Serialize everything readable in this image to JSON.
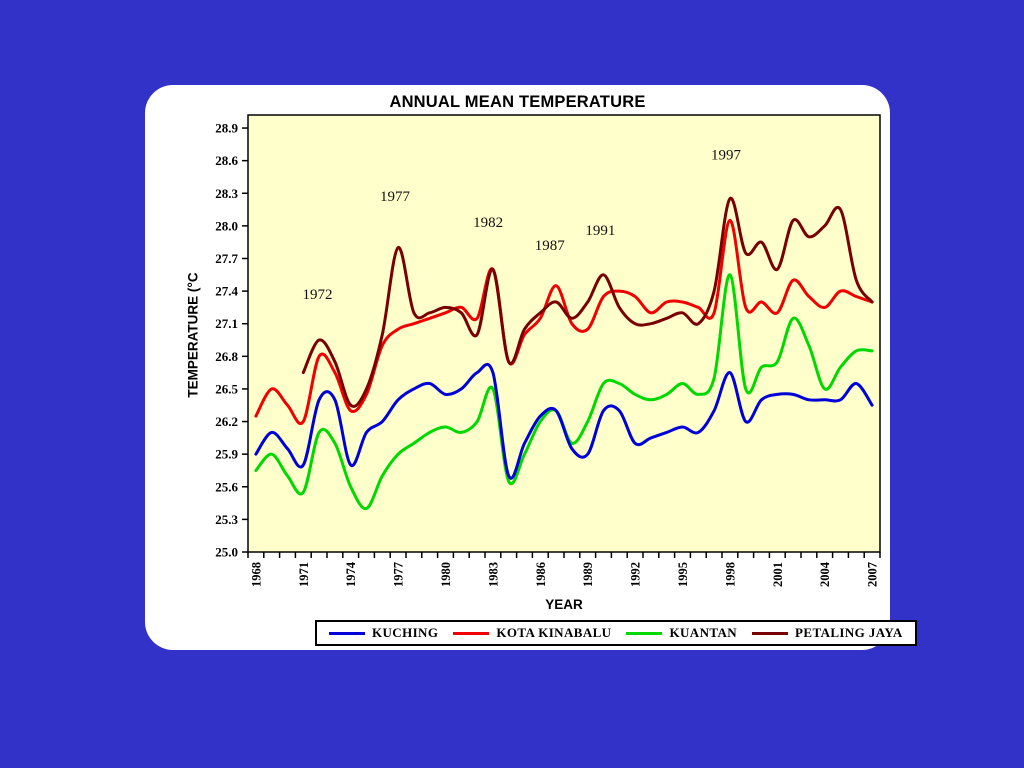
{
  "window": {
    "background_color": "#3232C8",
    "card_color": "#FFFFFF"
  },
  "chart_data": {
    "type": "line",
    "title": "ANNUAL MEAN TEMPERATURE",
    "xlabel": "YEAR",
    "ylabel": "TEMPERATURE (°C",
    "plot_background": "#FFFFCC",
    "axis_color": "#000000",
    "grid": false,
    "legend_position": "bottom",
    "x_start": 1968,
    "x_end": 2007,
    "xtick_labels": [
      1968,
      1971,
      1974,
      1977,
      1980,
      1983,
      1986,
      1989,
      1992,
      1995,
      1998,
      2001,
      2004,
      2007
    ],
    "ylim": [
      25.0,
      29.02
    ],
    "yticks": [
      25.0,
      25.3,
      25.6,
      25.9,
      26.2,
      26.5,
      26.8,
      27.1,
      27.4,
      27.7,
      28.0,
      28.3,
      28.6,
      28.9
    ],
    "series": [
      {
        "name": "KUCHING",
        "color": "#0000D8",
        "values": [
          25.9,
          26.1,
          25.95,
          25.8,
          26.4,
          26.4,
          25.8,
          26.1,
          26.2,
          26.4,
          26.5,
          26.55,
          26.45,
          26.5,
          26.65,
          26.65,
          25.7,
          26.0,
          26.25,
          26.3,
          25.95,
          25.9,
          26.3,
          26.3,
          26.0,
          26.05,
          26.1,
          26.15,
          26.1,
          26.3,
          26.65,
          26.2,
          26.4,
          26.45,
          26.45,
          26.4,
          26.4,
          26.4,
          26.55,
          26.35
        ]
      },
      {
        "name": "KOTA KINABALU",
        "color": "#F00000",
        "values": [
          26.25,
          26.5,
          26.35,
          26.2,
          26.8,
          26.65,
          26.3,
          26.45,
          26.9,
          27.05,
          27.1,
          27.15,
          27.2,
          27.25,
          27.15,
          27.6,
          26.75,
          27.0,
          27.15,
          27.45,
          27.1,
          27.05,
          27.35,
          27.4,
          27.35,
          27.2,
          27.3,
          27.3,
          27.25,
          27.2,
          28.05,
          27.25,
          27.3,
          27.2,
          27.5,
          27.35,
          27.25,
          27.4,
          27.35,
          27.3
        ]
      },
      {
        "name": "KUANTAN",
        "color": "#00D800",
        "values": [
          25.75,
          25.9,
          25.7,
          25.55,
          26.1,
          26.0,
          25.6,
          25.4,
          25.7,
          25.9,
          26.0,
          26.1,
          26.15,
          26.1,
          26.2,
          26.5,
          25.65,
          25.9,
          26.2,
          26.3,
          26.0,
          26.2,
          26.55,
          26.55,
          26.45,
          26.4,
          26.45,
          26.55,
          26.45,
          26.6,
          27.55,
          26.5,
          26.7,
          26.75,
          27.15,
          26.9,
          26.5,
          26.7,
          26.85,
          26.85
        ]
      },
      {
        "name": "PETALING JAYA",
        "color": "#780000",
        "values": [
          null,
          null,
          null,
          26.65,
          26.95,
          26.75,
          26.35,
          26.5,
          27.0,
          27.8,
          27.2,
          27.2,
          27.25,
          27.2,
          27.0,
          27.6,
          26.75,
          27.05,
          27.2,
          27.3,
          27.15,
          27.3,
          27.55,
          27.25,
          27.1,
          27.1,
          27.15,
          27.2,
          27.1,
          27.4,
          28.25,
          27.75,
          27.85,
          27.6,
          28.05,
          27.9,
          28.0,
          28.15,
          27.5,
          27.3
        ]
      }
    ],
    "annotations": [
      {
        "label": "1972",
        "year": 1971.9,
        "temp": 27.36
      },
      {
        "label": "1977",
        "year": 1976.8,
        "temp": 28.26
      },
      {
        "label": "1982",
        "year": 1982.7,
        "temp": 28.02
      },
      {
        "label": "1987",
        "year": 1986.6,
        "temp": 27.81
      },
      {
        "label": "1991",
        "year": 1989.8,
        "temp": 27.95
      },
      {
        "label": "1997",
        "year": 1997.75,
        "temp": 28.64
      }
    ]
  }
}
